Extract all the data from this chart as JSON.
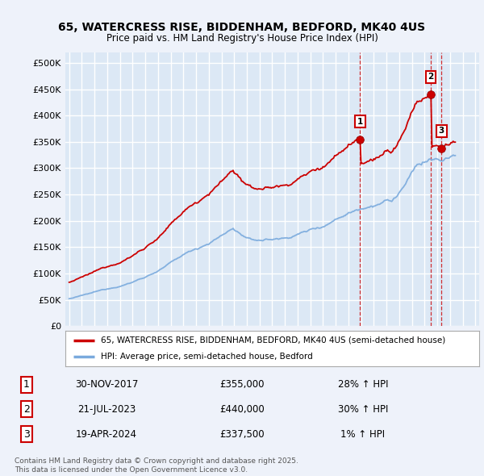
{
  "title_line1": "65, WATERCRESS RISE, BIDDENHAM, BEDFORD, MK40 4US",
  "title_line2": "Price paid vs. HM Land Registry's House Price Index (HPI)",
  "background_color": "#eef2fa",
  "plot_bg_color": "#dce8f5",
  "grid_color": "#c8d8e8",
  "red_line_color": "#cc0000",
  "blue_line_color": "#7aaadd",
  "ylim": [
    0,
    520000
  ],
  "yticks": [
    0,
    50000,
    100000,
    150000,
    200000,
    250000,
    300000,
    350000,
    400000,
    450000,
    500000
  ],
  "ytick_labels": [
    "£0",
    "£50K",
    "£100K",
    "£150K",
    "£200K",
    "£250K",
    "£300K",
    "£350K",
    "£400K",
    "£450K",
    "£500K"
  ],
  "legend_label_red": "65, WATERCRESS RISE, BIDDENHAM, BEDFORD, MK40 4US (semi-detached house)",
  "legend_label_blue": "HPI: Average price, semi-detached house, Bedford",
  "footer_text": "Contains HM Land Registry data © Crown copyright and database right 2025.\nThis data is licensed under the Open Government Licence v3.0.",
  "transaction_labels": [
    "1",
    "2",
    "3"
  ],
  "transaction_dates": [
    "30-NOV-2017",
    "21-JUL-2023",
    "19-APR-2024"
  ],
  "transaction_prices": [
    "£355,000",
    "£440,000",
    "£337,500"
  ],
  "transaction_hpi": [
    "28% ↑ HPI",
    "30% ↑ HPI",
    "1% ↑ HPI"
  ],
  "sale1_year": 2017.92,
  "sale1_price": 355000,
  "sale2_year": 2023.54,
  "sale2_price": 440000,
  "sale3_year": 2024.3,
  "sale3_price": 337500
}
